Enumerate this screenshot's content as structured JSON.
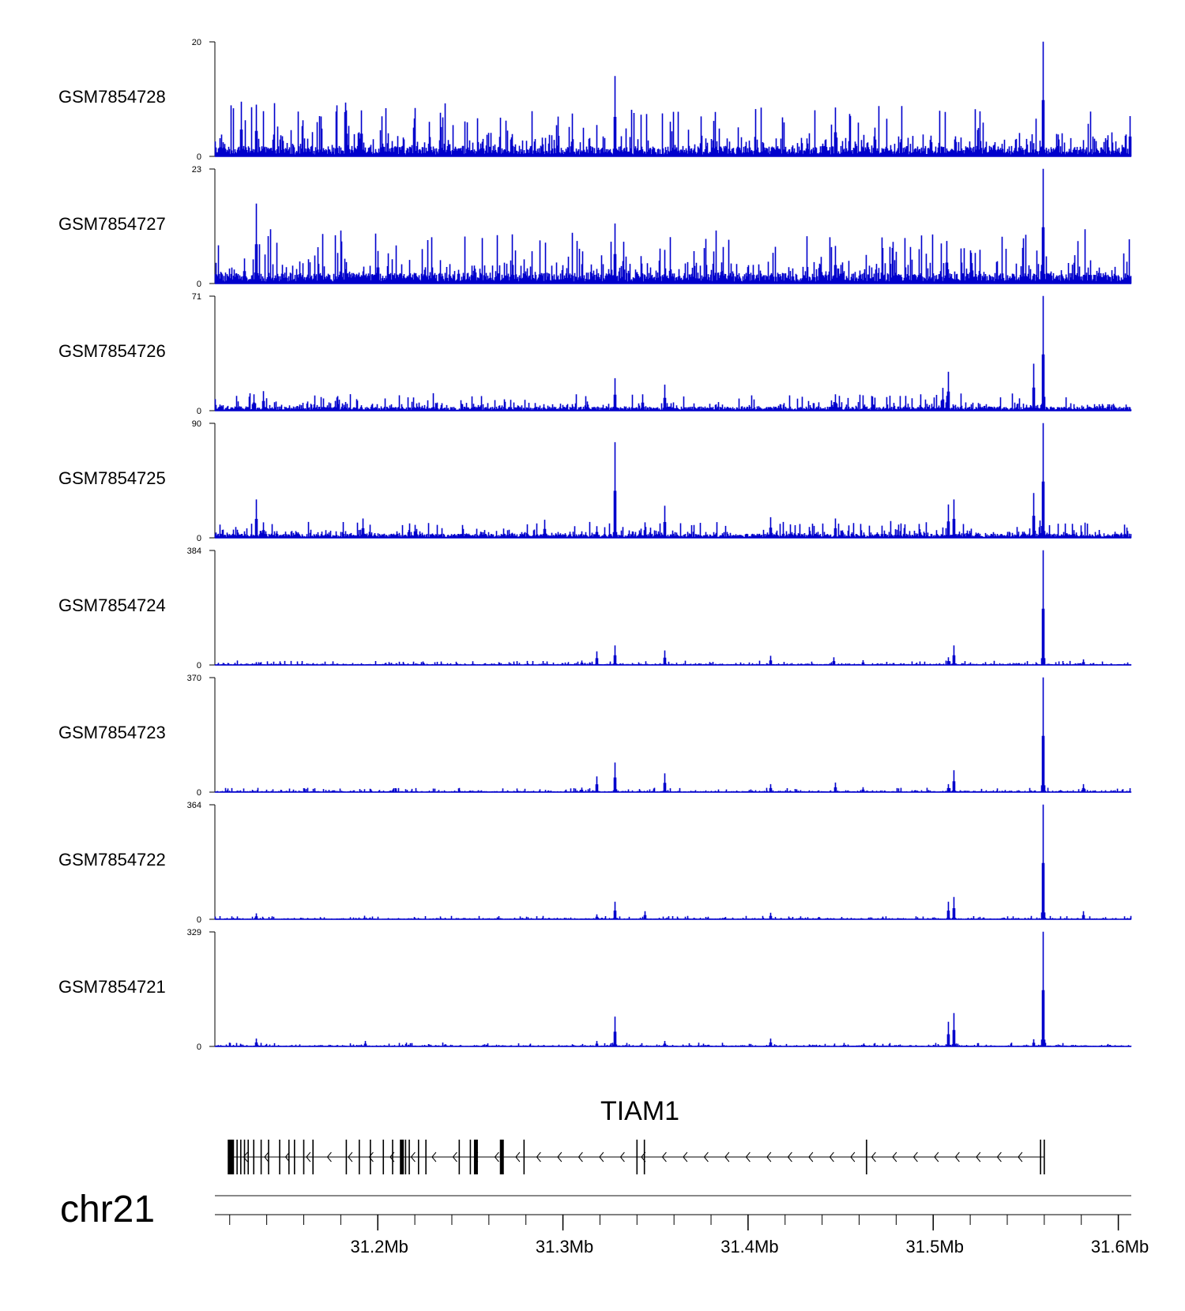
{
  "chart_data": {
    "type": "area",
    "chromosome": "chr21",
    "gene": {
      "name": "TIAM1",
      "strand": "-"
    },
    "x_range": [
      31.112,
      31.607
    ],
    "x_unit": "Mb",
    "tick_labels": [
      "31.2Mb",
      "31.3Mb",
      "31.4Mb",
      "31.5Mb",
      "31.6Mb"
    ],
    "tick_values": [
      31.2,
      31.3,
      31.4,
      31.5,
      31.6
    ],
    "minor_tick_step": 0.02,
    "color": "#0000cc",
    "series": [
      {
        "name": "GSM7854728",
        "ymin": "0",
        "ymax": "20",
        "max_value": 20,
        "baseline": 1.5,
        "noise": 2.6,
        "peaks": [
          [
            31.126,
            9.5
          ],
          [
            31.134,
            9
          ],
          [
            31.183,
            8
          ],
          [
            31.191,
            8
          ],
          [
            31.328,
            14
          ],
          [
            31.447,
            8.5
          ],
          [
            31.559,
            20
          ],
          [
            31.606,
            7
          ]
        ]
      },
      {
        "name": "GSM7854727",
        "ymin": "0",
        "ymax": "23",
        "max_value": 23,
        "baseline": 1.8,
        "noise": 3.0,
        "peaks": [
          [
            31.134,
            16
          ],
          [
            31.128,
            5
          ],
          [
            31.2,
            6.5
          ],
          [
            31.328,
            12
          ],
          [
            31.447,
            7.5
          ],
          [
            31.507,
            8.5
          ],
          [
            31.559,
            23
          ]
        ]
      },
      {
        "name": "GSM7854726",
        "ymin": "0",
        "ymax": "71",
        "max_value": 71,
        "baseline": 2.0,
        "noise": 3.0,
        "peaks": [
          [
            31.112,
            7
          ],
          [
            31.133,
            10
          ],
          [
            31.138,
            12
          ],
          [
            31.328,
            20
          ],
          [
            31.343,
            10
          ],
          [
            31.355,
            16
          ],
          [
            31.447,
            10
          ],
          [
            31.505,
            14
          ],
          [
            31.508,
            24
          ],
          [
            31.554,
            29
          ],
          [
            31.559,
            71
          ]
        ]
      },
      {
        "name": "GSM7854725",
        "ymin": "0",
        "ymax": "90",
        "max_value": 90,
        "baseline": 2.5,
        "noise": 3.5,
        "peaks": [
          [
            31.134,
            30
          ],
          [
            31.138,
            12
          ],
          [
            31.192,
            15
          ],
          [
            31.22,
            10
          ],
          [
            31.29,
            14
          ],
          [
            31.318,
            9
          ],
          [
            31.328,
            75
          ],
          [
            31.344,
            12
          ],
          [
            31.355,
            25
          ],
          [
            31.412,
            16
          ],
          [
            31.447,
            15
          ],
          [
            31.508,
            26
          ],
          [
            31.511,
            30
          ],
          [
            31.554,
            35
          ],
          [
            31.559,
            90
          ]
        ]
      },
      {
        "name": "GSM7854724",
        "ymin": "0",
        "ymax": "384",
        "max_value": 384,
        "baseline": 2.0,
        "noise": 4.0,
        "peaks": [
          [
            31.318,
            45
          ],
          [
            31.328,
            65
          ],
          [
            31.31,
            14
          ],
          [
            31.355,
            48
          ],
          [
            31.412,
            30
          ],
          [
            31.446,
            25
          ],
          [
            31.462,
            15
          ],
          [
            31.508,
            25
          ],
          [
            31.511,
            65
          ],
          [
            31.559,
            384
          ],
          [
            31.581,
            18
          ]
        ]
      },
      {
        "name": "GSM7854723",
        "ymin": "0",
        "ymax": "370",
        "max_value": 370,
        "baseline": 2.0,
        "noise": 4.0,
        "peaks": [
          [
            31.31,
            14
          ],
          [
            31.318,
            50
          ],
          [
            31.328,
            95
          ],
          [
            31.355,
            60
          ],
          [
            31.412,
            25
          ],
          [
            31.447,
            30
          ],
          [
            31.462,
            15
          ],
          [
            31.508,
            25
          ],
          [
            31.511,
            70
          ],
          [
            31.559,
            370
          ],
          [
            31.581,
            25
          ]
        ]
      },
      {
        "name": "GSM7854722",
        "ymin": "0",
        "ymax": "364",
        "max_value": 364,
        "baseline": 1.5,
        "noise": 3.0,
        "peaks": [
          [
            31.134,
            18
          ],
          [
            31.318,
            15
          ],
          [
            31.328,
            55
          ],
          [
            31.344,
            25
          ],
          [
            31.412,
            20
          ],
          [
            31.508,
            55
          ],
          [
            31.511,
            70
          ],
          [
            31.559,
            364
          ],
          [
            31.581,
            25
          ],
          [
            31.607,
            20
          ]
        ]
      },
      {
        "name": "GSM7854721",
        "ymin": "0",
        "ymax": "329",
        "max_value": 329,
        "baseline": 1.5,
        "noise": 3.0,
        "peaks": [
          [
            31.134,
            22
          ],
          [
            31.193,
            15
          ],
          [
            31.318,
            15
          ],
          [
            31.328,
            85
          ],
          [
            31.355,
            15
          ],
          [
            31.412,
            22
          ],
          [
            31.508,
            70
          ],
          [
            31.511,
            95
          ],
          [
            31.554,
            20
          ],
          [
            31.559,
            329
          ]
        ]
      }
    ],
    "transcript": {
      "start": 31.119,
      "end": 31.56,
      "exons": [
        31.12,
        31.121,
        31.122,
        31.124,
        31.126,
        31.128,
        31.13,
        31.133,
        31.137,
        31.141,
        31.147,
        31.152,
        31.155,
        31.16,
        31.165,
        31.183,
        31.19,
        31.196,
        31.203,
        31.208,
        31.213,
        31.215,
        31.217,
        31.222,
        31.226,
        31.244,
        31.25,
        31.253,
        31.267,
        31.279,
        31.34,
        31.344,
        31.464,
        31.558,
        31.56
      ],
      "thick_exons": [
        31.12,
        31.121,
        31.213,
        31.253,
        31.267
      ]
    }
  }
}
